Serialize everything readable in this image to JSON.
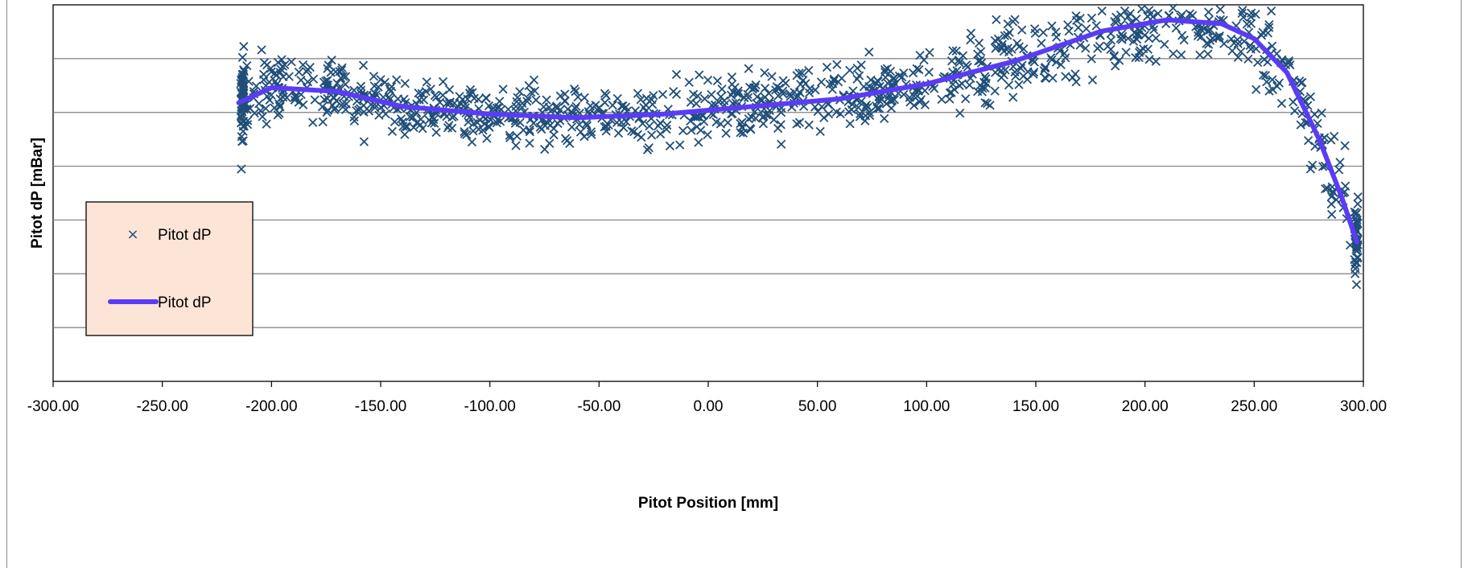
{
  "chart_data": {
    "type": "scatter",
    "xlabel": "Pitot Position  [mm]",
    "ylabel": "Pitot dP [mBar]",
    "xlim": [
      -300,
      300
    ],
    "x_ticks": [
      "-300.00",
      "-250.00",
      "-200.00",
      "-150.00",
      "-100.00",
      "-50.00",
      "0.00",
      "50.00",
      "100.00",
      "150.00",
      "200.00",
      "250.00",
      "300.00"
    ],
    "y_tick_labels_shown": false,
    "gridlines": "horizontal",
    "gridline_count": 6,
    "legend_position": "left",
    "series": [
      {
        "name": "Pitot dP",
        "kind": "scatter",
        "marker": "x",
        "color": "#1F4E79",
        "x_range": [
          -215,
          297
        ],
        "point_count": 1100,
        "trend": [
          [
            -215,
            0.74
          ],
          [
            -200,
            0.78
          ],
          [
            -170,
            0.77
          ],
          [
            -140,
            0.73
          ],
          [
            -100,
            0.71
          ],
          [
            -60,
            0.7
          ],
          [
            -20,
            0.71
          ],
          [
            20,
            0.73
          ],
          [
            60,
            0.75
          ],
          [
            100,
            0.79
          ],
          [
            140,
            0.85
          ],
          [
            180,
            0.93
          ],
          [
            210,
            0.96
          ],
          [
            235,
            0.95
          ],
          [
            250,
            0.91
          ],
          [
            265,
            0.82
          ],
          [
            280,
            0.64
          ],
          [
            290,
            0.49
          ],
          [
            297,
            0.37
          ]
        ]
      },
      {
        "name": "Pitot dP",
        "kind": "line",
        "color": "#5B3CF5",
        "x": [
          -215,
          -200,
          -170,
          -140,
          -100,
          -60,
          -20,
          20,
          60,
          100,
          140,
          180,
          210,
          235,
          250,
          265,
          280,
          290,
          297
        ],
        "y": [
          0.74,
          0.78,
          0.77,
          0.73,
          0.71,
          0.7,
          0.71,
          0.73,
          0.75,
          0.79,
          0.85,
          0.93,
          0.96,
          0.95,
          0.91,
          0.82,
          0.64,
          0.49,
          0.37
        ]
      }
    ]
  },
  "legend": {
    "items": [
      {
        "label": "Pitot dP",
        "symbol": "x-marker"
      },
      {
        "label": "Pitot dP",
        "symbol": "line"
      }
    ]
  }
}
